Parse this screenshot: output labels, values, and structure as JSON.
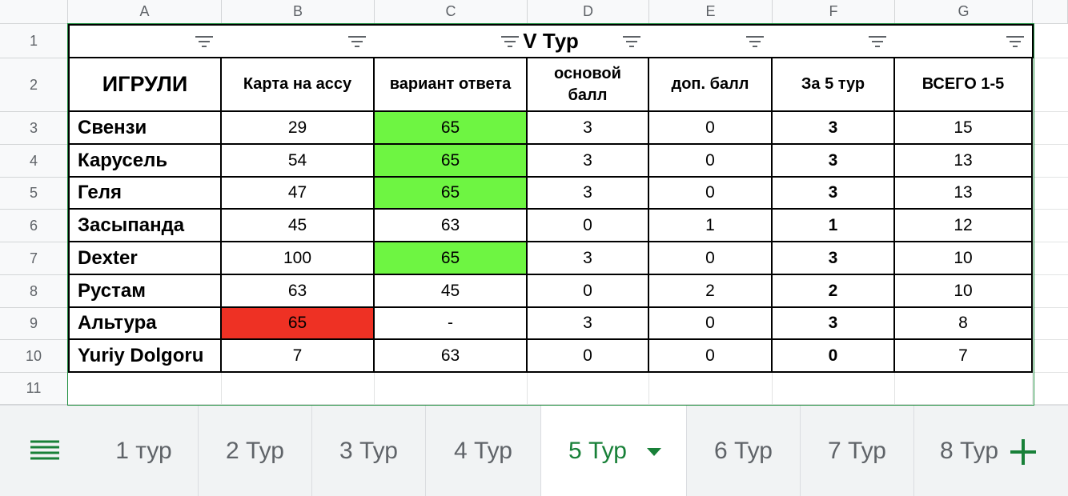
{
  "columns": [
    "A",
    "B",
    "C",
    "D",
    "E",
    "F",
    "G"
  ],
  "rows": [
    1,
    2,
    3,
    4,
    5,
    6,
    7,
    8,
    9,
    10,
    11
  ],
  "table": {
    "title": "V Тур",
    "header": [
      "ИГРУЛИ",
      "Карта на ассу",
      "вариант ответа",
      "основой балл",
      "доп. балл",
      "За 5 тур",
      "ВСЕГО 1-5"
    ],
    "body": [
      [
        "Свензи",
        29,
        65,
        3,
        0,
        3,
        15
      ],
      [
        "Карусель",
        54,
        65,
        3,
        0,
        3,
        13
      ],
      [
        "Геля",
        47,
        65,
        3,
        0,
        3,
        13
      ],
      [
        "Засыпанда",
        45,
        63,
        0,
        1,
        1,
        12
      ],
      [
        "Dexter",
        100,
        65,
        3,
        0,
        3,
        10
      ],
      [
        "Рустам",
        63,
        45,
        0,
        2,
        2,
        10
      ],
      [
        "Альтура",
        65,
        "-",
        3,
        0,
        3,
        8
      ],
      [
        "Yuriy Dolgoru",
        7,
        63,
        0,
        0,
        0,
        7
      ]
    ]
  },
  "tabs": [
    "1 тур",
    "2 Тур",
    "3 Тур",
    "4 Тур",
    "5 Тур",
    "6 Тур",
    "7 Тур",
    "8 Тур"
  ]
}
